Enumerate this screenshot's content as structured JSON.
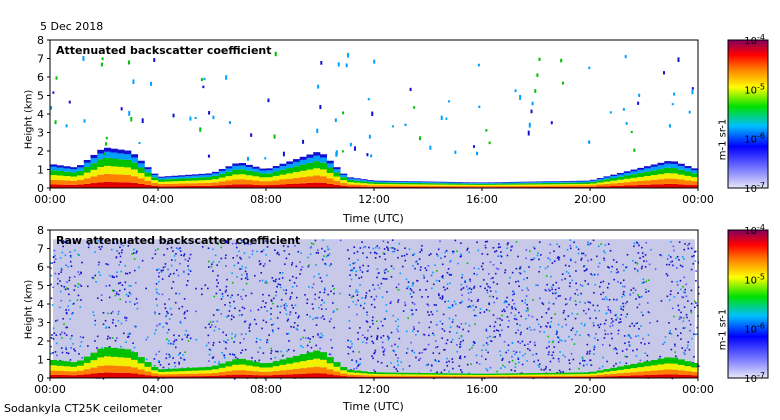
{
  "date_label": "5 Dec 2018",
  "footer_label": "Sodankyla CT25K ceilometer",
  "colors": {
    "noise": "#c8c8e8",
    "low": "#1010d0",
    "mid": "#00a0ff",
    "green": "#00c000",
    "yellow": "#f0f000",
    "orange": "#ff8000",
    "red": "#e00000"
  },
  "chart_data": [
    {
      "type": "heatmap",
      "title": "Attenuated backscatter coefficient",
      "xlabel": "Time (UTC)",
      "ylabel": "Height (km)",
      "x_ticks": [
        "00:00",
        "04:00",
        "08:00",
        "12:00",
        "16:00",
        "20:00",
        "00:00"
      ],
      "x_tick_hours": [
        0,
        4,
        8,
        12,
        16,
        20,
        24
      ],
      "y_ticks": [
        "0",
        "1",
        "2",
        "3",
        "4",
        "5",
        "6",
        "7",
        "8"
      ],
      "ylim": [
        0,
        8
      ],
      "colorbar": {
        "scale": "log",
        "range": [
          1e-07,
          0.0001
        ],
        "tick_labels": [
          "10-4",
          "10-5",
          "10-6",
          "10-7"
        ],
        "unit": "m-1 sr-1"
      },
      "boundary_layer_top_km": [
        {
          "hour": 0,
          "km": 1.3
        },
        {
          "hour": 1,
          "km": 1.1
        },
        {
          "hour": 2,
          "km": 2.2
        },
        {
          "hour": 3,
          "km": 2.0
        },
        {
          "hour": 4,
          "km": 0.6
        },
        {
          "hour": 6,
          "km": 0.8
        },
        {
          "hour": 7,
          "km": 1.4
        },
        {
          "hour": 8,
          "km": 1.0
        },
        {
          "hour": 9,
          "km": 1.5
        },
        {
          "hour": 10,
          "km": 2.0
        },
        {
          "hour": 11,
          "km": 0.6
        },
        {
          "hour": 12,
          "km": 0.4
        },
        {
          "hour": 16,
          "km": 0.3
        },
        {
          "hour": 20,
          "km": 0.4
        },
        {
          "hour": 23,
          "km": 1.5
        },
        {
          "hour": 24,
          "km": 1.0
        }
      ]
    },
    {
      "type": "heatmap",
      "title": "Raw attenuated backscatter coefficient",
      "xlabel": "Time (UTC)",
      "ylabel": "Height (km)",
      "x_ticks": [
        "00:00",
        "04:00",
        "08:00",
        "12:00",
        "16:00",
        "20:00",
        "00:00"
      ],
      "x_tick_hours": [
        0,
        4,
        8,
        12,
        16,
        20,
        24
      ],
      "y_ticks": [
        "0",
        "1",
        "2",
        "3",
        "4",
        "5",
        "6",
        "7",
        "8"
      ],
      "ylim": [
        0,
        8
      ],
      "signal_top_km": 7.5,
      "colorbar": {
        "scale": "log",
        "range": [
          1e-07,
          0.0001
        ],
        "tick_labels": [
          "10-4",
          "10-5",
          "10-6",
          "10-7"
        ],
        "unit": "m-1 sr-1"
      }
    }
  ]
}
